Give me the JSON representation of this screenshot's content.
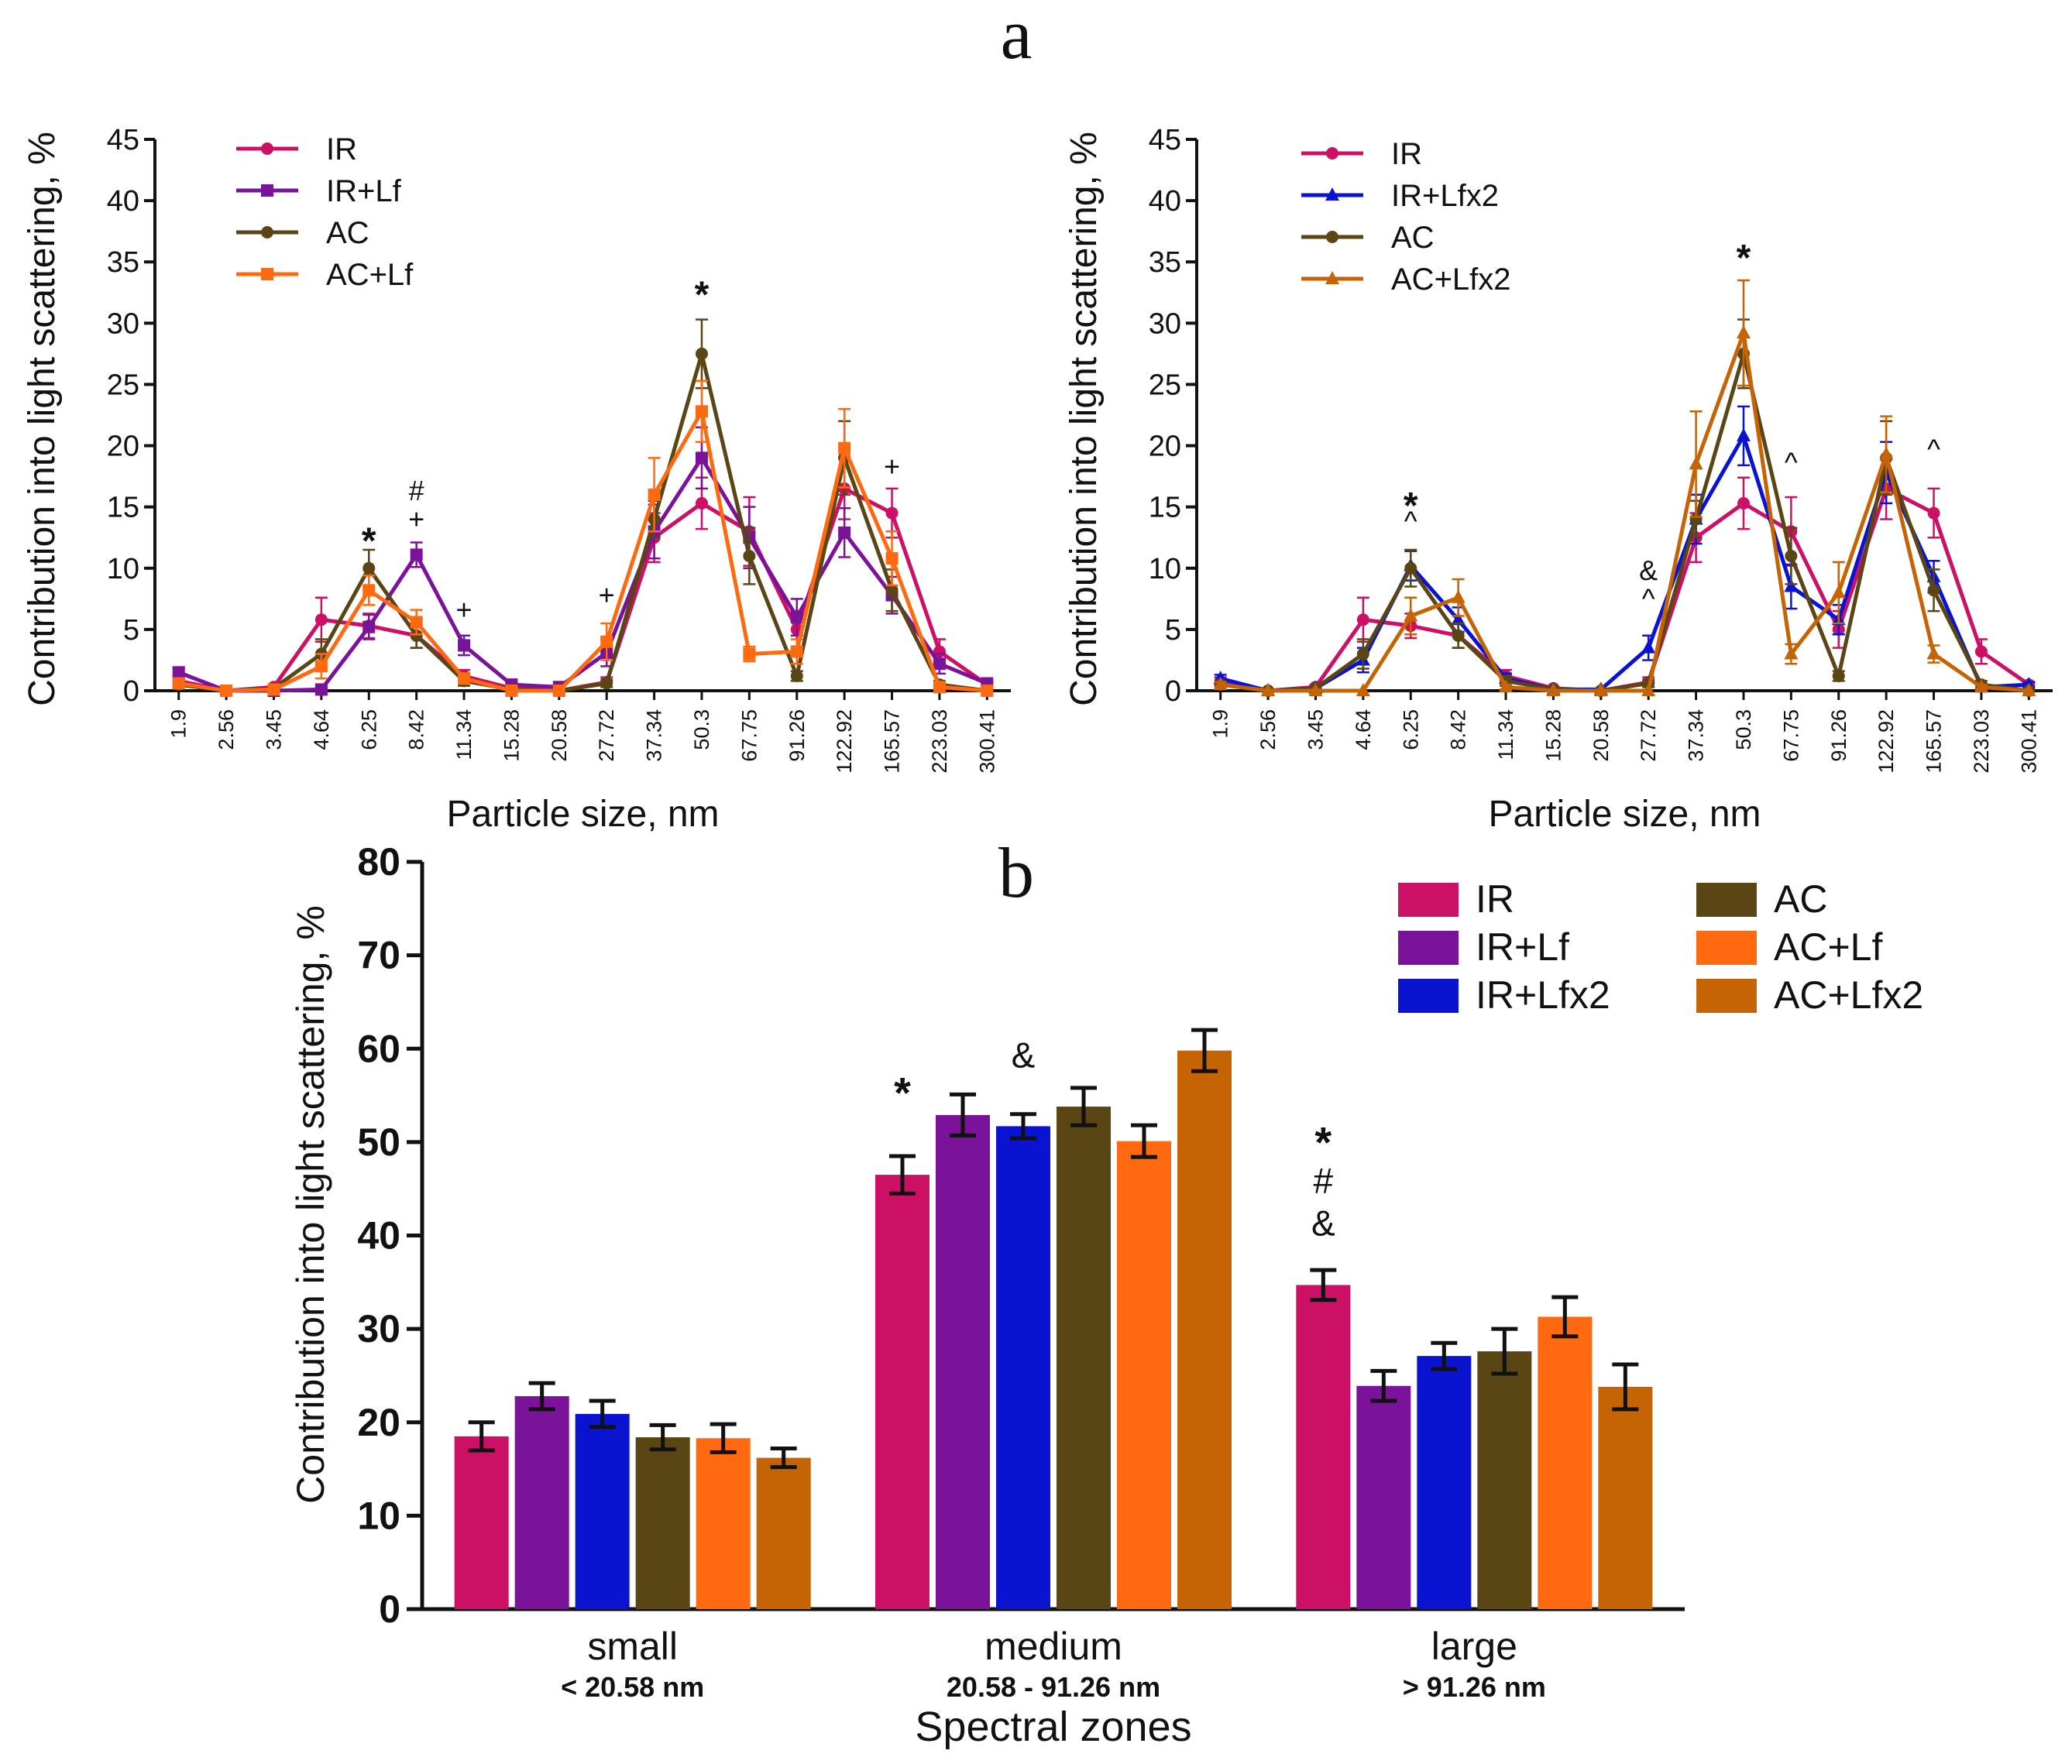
{
  "figure": {
    "panel_a_label": "a",
    "panel_b_label": "b"
  },
  "colors": {
    "IR": "#cc1065",
    "IR+Lf": "#7a1399",
    "AC": "#5a4614",
    "AC+Lf": "#ff6a10",
    "IR+Lfx2": "#0a14d0",
    "AC+Lfx2": "#c66405",
    "axis": "#111111",
    "error_bar": "#111111"
  },
  "chart_data": [
    {
      "id": "a-left",
      "type": "line",
      "title": "",
      "xlabel": "Particle size, nm",
      "ylabel": "Contribution into light scattering, %",
      "ylim": [
        0,
        45
      ],
      "yticks": [
        0,
        5,
        10,
        15,
        20,
        25,
        30,
        35,
        40,
        45
      ],
      "legend_position": "top-left",
      "categories": [
        "1.9",
        "2.56",
        "3.45",
        "4.64",
        "6.25",
        "8.42",
        "11.34",
        "15.28",
        "20.58",
        "27.72",
        "37.34",
        "50.3",
        "67.75",
        "91.26",
        "122.92",
        "165.57",
        "223.03",
        "300.41"
      ],
      "series": [
        {
          "name": "IR",
          "color_key": "IR",
          "marker": "circle",
          "values": [
            0.8,
            0,
            0.3,
            5.8,
            5.3,
            4.5,
            1.2,
            0.2,
            0,
            0.7,
            12.5,
            15.3,
            13,
            5,
            16.5,
            14.5,
            3.2,
            0.5
          ],
          "errors": [
            0.3,
            0,
            0.2,
            1.8,
            1,
            1,
            0.5,
            0.1,
            0,
            0.4,
            2,
            2.1,
            2.8,
            1.5,
            2.5,
            2,
            1,
            0.2
          ]
        },
        {
          "name": "IR+Lf",
          "color_key": "IR+Lf",
          "marker": "square",
          "values": [
            1.5,
            0,
            0,
            0.1,
            5.2,
            11.1,
            3.7,
            0.5,
            0.3,
            3.1,
            13,
            19,
            12.5,
            6,
            12.9,
            7.8,
            2.2,
            0.6
          ],
          "errors": [
            0.4,
            0,
            0,
            0.1,
            1,
            1,
            0.8,
            0.2,
            0.1,
            1.1,
            2.2,
            2.5,
            2.5,
            1.5,
            2,
            1.5,
            0.8,
            0.2
          ]
        },
        {
          "name": "AC",
          "color_key": "AC",
          "marker": "circle",
          "values": [
            0.5,
            0,
            0.2,
            3,
            10,
            4.5,
            0.8,
            0.1,
            0,
            0.6,
            14,
            27.5,
            11,
            1.2,
            19,
            8.2,
            0.5,
            0
          ],
          "errors": [
            0.2,
            0,
            0.1,
            1.2,
            1.5,
            1,
            0.4,
            0.1,
            0,
            0.3,
            1.5,
            2.8,
            2.3,
            0.4,
            3,
            1.7,
            0.3,
            0
          ]
        },
        {
          "name": "AC+Lf",
          "color_key": "AC+Lf",
          "marker": "square",
          "values": [
            0.6,
            0,
            0.1,
            2,
            8.2,
            5.6,
            1,
            0,
            0,
            4,
            16,
            22.8,
            3,
            3.2,
            19.8,
            10.8,
            0.3,
            0
          ],
          "errors": [
            0.3,
            0,
            0.1,
            1,
            1.2,
            1,
            0.4,
            0,
            0,
            1.5,
            3,
            2.5,
            0.6,
            1,
            3.2,
            2.2,
            0.2,
            0
          ]
        }
      ],
      "annotations": [
        {
          "text": "*",
          "category": "6.25",
          "y": 12.6
        },
        {
          "text": "#",
          "category": "8.42",
          "y": 16.3
        },
        {
          "text": "+",
          "category": "8.42",
          "y": 14.0
        },
        {
          "text": "+",
          "category": "11.34",
          "y": 6.6
        },
        {
          "text": "+",
          "category": "27.72",
          "y": 7.8
        },
        {
          "text": "*",
          "category": "50.3",
          "y": 32.7
        },
        {
          "text": "+",
          "category": "165.57",
          "y": 18.3
        }
      ]
    },
    {
      "id": "a-right",
      "type": "line",
      "title": "",
      "xlabel": "Particle size, nm",
      "ylabel": "Contribution into light scattering, %",
      "ylim": [
        0,
        45
      ],
      "yticks": [
        0,
        5,
        10,
        15,
        20,
        25,
        30,
        35,
        40,
        45
      ],
      "legend_position": "top-left",
      "categories": [
        "1.9",
        "2.56",
        "3.45",
        "4.64",
        "6.25",
        "8.42",
        "11.34",
        "15.28",
        "20.58",
        "27.72",
        "37.34",
        "50.3",
        "67.75",
        "91.26",
        "122.92",
        "165.57",
        "223.03",
        "300.41"
      ],
      "series": [
        {
          "name": "IR",
          "color_key": "IR",
          "marker": "circle",
          "values": [
            0.8,
            0,
            0.3,
            5.8,
            5.3,
            4.5,
            1.2,
            0.2,
            0,
            0.7,
            12.5,
            15.3,
            13,
            5,
            16.5,
            14.5,
            3.2,
            0.5
          ],
          "errors": [
            0.3,
            0,
            0.2,
            1.8,
            1,
            1,
            0.5,
            0.1,
            0,
            0.4,
            2,
            2.1,
            2.8,
            1.5,
            2.5,
            2,
            1,
            0.2
          ]
        },
        {
          "name": "IR+Lfx2",
          "color_key": "IR+Lfx2",
          "marker": "triangle",
          "values": [
            1,
            0,
            0.2,
            2.5,
            10.2,
            5.8,
            1,
            0.1,
            0.1,
            3.5,
            14,
            20.8,
            8.5,
            5.8,
            17.8,
            9.3,
            0.3,
            0.5
          ],
          "errors": [
            0.3,
            0,
            0.1,
            1,
            1.2,
            1,
            0.4,
            0.1,
            0,
            1,
            2,
            2.4,
            1.8,
            1.2,
            2.5,
            1.3,
            0.2,
            0.2
          ]
        },
        {
          "name": "AC",
          "color_key": "AC",
          "marker": "circle",
          "values": [
            0.5,
            0,
            0.2,
            3,
            10,
            4.5,
            0.8,
            0.1,
            0,
            0.6,
            14,
            27.5,
            11,
            1.2,
            19,
            8.2,
            0.5,
            0
          ],
          "errors": [
            0.2,
            0,
            0.1,
            1.2,
            1.5,
            1,
            0.4,
            0.1,
            0,
            0.3,
            1.5,
            2.8,
            2.3,
            0.4,
            3,
            1.7,
            0.3,
            0
          ]
        },
        {
          "name": "AC+Lfx2",
          "color_key": "AC+Lfx2",
          "marker": "triangle",
          "values": [
            0.5,
            0,
            0,
            0,
            6.1,
            7.6,
            0.3,
            0,
            0,
            0,
            18.5,
            29.2,
            3,
            8,
            19.3,
            3,
            0.3,
            0
          ],
          "errors": [
            0.2,
            0,
            0,
            0,
            1.5,
            1.5,
            0.2,
            0,
            0,
            0,
            4.3,
            4.3,
            0.8,
            2.5,
            3.1,
            0.7,
            0.2,
            0
          ]
        }
      ],
      "annotations": [
        {
          "text": "*",
          "category": "6.25",
          "y": 15.5
        },
        {
          "text": "^",
          "category": "6.25",
          "y": 13.8
        },
        {
          "text": "&",
          "category": "27.72",
          "y": 9.8
        },
        {
          "text": "^",
          "category": "27.72",
          "y": 7.5
        },
        {
          "text": "*",
          "category": "50.3",
          "y": 35.7
        },
        {
          "text": "^",
          "category": "67.75",
          "y": 18.6
        },
        {
          "text": "^",
          "category": "165.57",
          "y": 19.7
        }
      ]
    },
    {
      "id": "b",
      "type": "bar",
      "title": "",
      "xlabel": "Spectral zones",
      "ylabel": "Contribution into light scattering, %",
      "ylim": [
        0,
        80
      ],
      "yticks": [
        0,
        10,
        20,
        30,
        40,
        50,
        60,
        70,
        80
      ],
      "legend_position": "top-right",
      "legend_order": [
        "IR",
        "IR+Lf",
        "IR+Lfx2",
        "AC",
        "AC+Lf",
        "AC+Lfx2"
      ],
      "categories": [
        {
          "name": "small",
          "range": "< 20.58 nm"
        },
        {
          "name": "medium",
          "range": "20.58 - 91.26 nm"
        },
        {
          "name": "large",
          "range": "> 91.26 nm"
        }
      ],
      "series": [
        {
          "name": "IR",
          "color_key": "IR",
          "values": [
            18.5,
            46.5,
            34.7
          ],
          "errors": [
            1.5,
            2,
            1.6
          ]
        },
        {
          "name": "IR+Lf",
          "color_key": "IR+Lf",
          "values": [
            22.8,
            52.9,
            23.9
          ],
          "errors": [
            1.4,
            2.2,
            1.6
          ]
        },
        {
          "name": "IR+Lfx2",
          "color_key": "IR+Lfx2",
          "values": [
            20.9,
            51.7,
            27.1
          ],
          "errors": [
            1.4,
            1.3,
            1.4
          ]
        },
        {
          "name": "AC",
          "color_key": "AC",
          "values": [
            18.4,
            53.8,
            27.6
          ],
          "errors": [
            1.3,
            2,
            2.4
          ]
        },
        {
          "name": "AC+Lf",
          "color_key": "AC+Lf",
          "values": [
            18.3,
            50.1,
            31.3
          ],
          "errors": [
            1.5,
            1.7,
            2.1
          ]
        },
        {
          "name": "AC+Lfx2",
          "color_key": "AC+Lfx2",
          "values": [
            16.2,
            59.8,
            23.8
          ],
          "errors": [
            1,
            2.2,
            2.4
          ]
        }
      ],
      "annotations": [
        {
          "text": "*",
          "category_index": 1,
          "series": "IR",
          "y": 56
        },
        {
          "text": "&",
          "category_index": 1,
          "series": "IR+Lfx2",
          "y": 59.5
        },
        {
          "text": "*",
          "category_index": 2,
          "series": "IR",
          "y": 50.7
        },
        {
          "text": "#",
          "category_index": 2,
          "series": "IR",
          "y": 46
        },
        {
          "text": "&",
          "category_index": 2,
          "series": "IR",
          "y": 41.5
        }
      ]
    }
  ]
}
